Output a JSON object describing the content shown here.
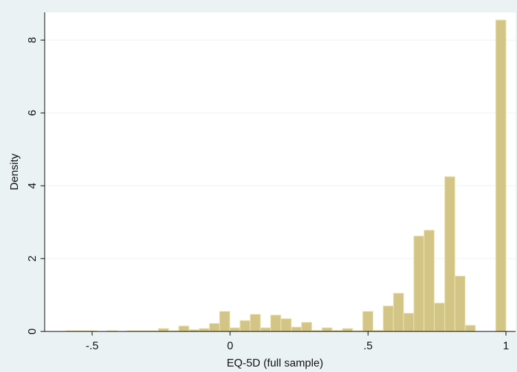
{
  "chart_data": {
    "type": "histogram",
    "xlabel": "EQ-5D (full sample)",
    "ylabel": "Density",
    "bins": [
      -0.594,
      -0.557,
      -0.52,
      -0.483,
      -0.446,
      -0.409,
      -0.372,
      -0.335,
      -0.298,
      -0.26,
      -0.223,
      -0.186,
      -0.149,
      -0.112,
      -0.075,
      -0.038,
      -0.001,
      0.036,
      0.073,
      0.11,
      0.147,
      0.184,
      0.222,
      0.259,
      0.296,
      0.333,
      0.37,
      0.407,
      0.444,
      0.481,
      0.518,
      0.555,
      0.592,
      0.629,
      0.666,
      0.703,
      0.74,
      0.778,
      0.815,
      0.852,
      0.889,
      0.926,
      0.963,
      1.0
    ],
    "values": [
      0.02,
      0.02,
      0.02,
      0,
      0.02,
      0,
      0.02,
      0.02,
      0.02,
      0.08,
      0.02,
      0.15,
      0.05,
      0.08,
      0.22,
      0.55,
      0.1,
      0.3,
      0.47,
      0.1,
      0.45,
      0.35,
      0.12,
      0.25,
      0.03,
      0.1,
      0.03,
      0.08,
      0.02,
      0.55,
      0.03,
      0.7,
      1.05,
      0.5,
      2.62,
      2.78,
      0.78,
      4.25,
      1.52,
      0.17,
      0,
      0,
      8.55
    ],
    "color": "#d3c586",
    "xlim": [
      -0.672,
      1.035
    ],
    "ylim": [
      0,
      8.76
    ],
    "xticks": [
      {
        "value": -0.5,
        "label": "-.5"
      },
      0,
      {
        "value": 0.5,
        "label": ".5"
      },
      1
    ],
    "yticks": [
      0,
      2,
      4,
      6,
      8
    ],
    "grid": true
  }
}
